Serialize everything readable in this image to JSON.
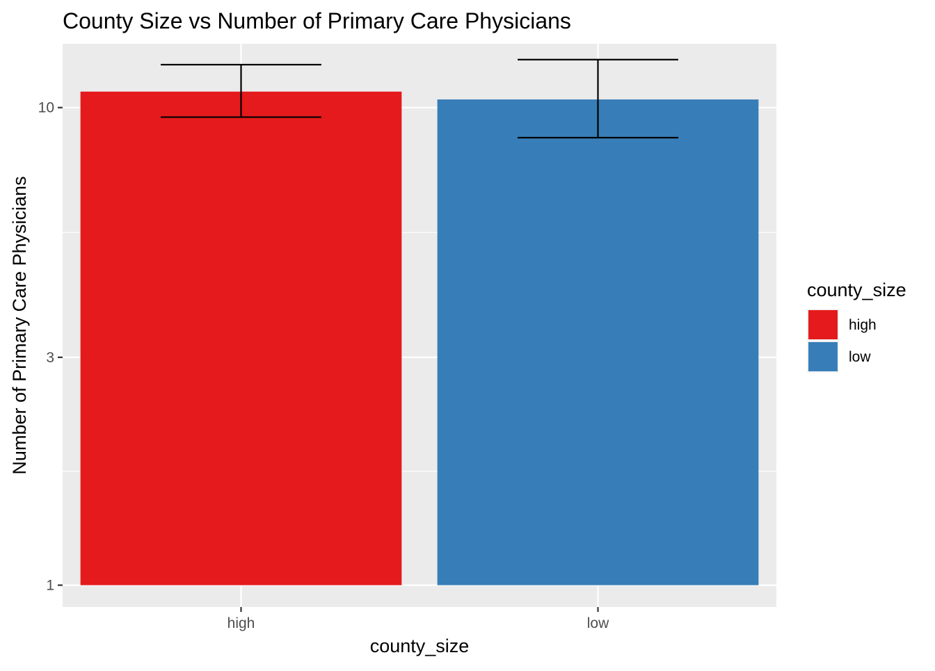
{
  "chart_data": {
    "type": "bar",
    "title": "County Size vs Number of Primary Care Physicians",
    "xlabel": "county_size",
    "ylabel": "Number of Primary Care Physicians",
    "y_scale": "log10",
    "ylim": [
      0.9,
      13.6
    ],
    "y_ticks": [
      1,
      3,
      10
    ],
    "y_tick_labels": [
      "1",
      "3",
      "10"
    ],
    "grid": true,
    "categories": [
      "high",
      "low"
    ],
    "values": [
      10.8,
      10.4
    ],
    "error_bars": [
      {
        "category": "high",
        "lower": 9.55,
        "upper": 12.3
      },
      {
        "category": "low",
        "lower": 8.65,
        "upper": 12.6
      }
    ],
    "colors": [
      "#E41A1C",
      "#377EB8"
    ],
    "legend": {
      "title": "county_size",
      "position": "right",
      "entries": [
        {
          "label": "high",
          "color": "#E41A1C"
        },
        {
          "label": "low",
          "color": "#377EB8"
        }
      ]
    }
  }
}
